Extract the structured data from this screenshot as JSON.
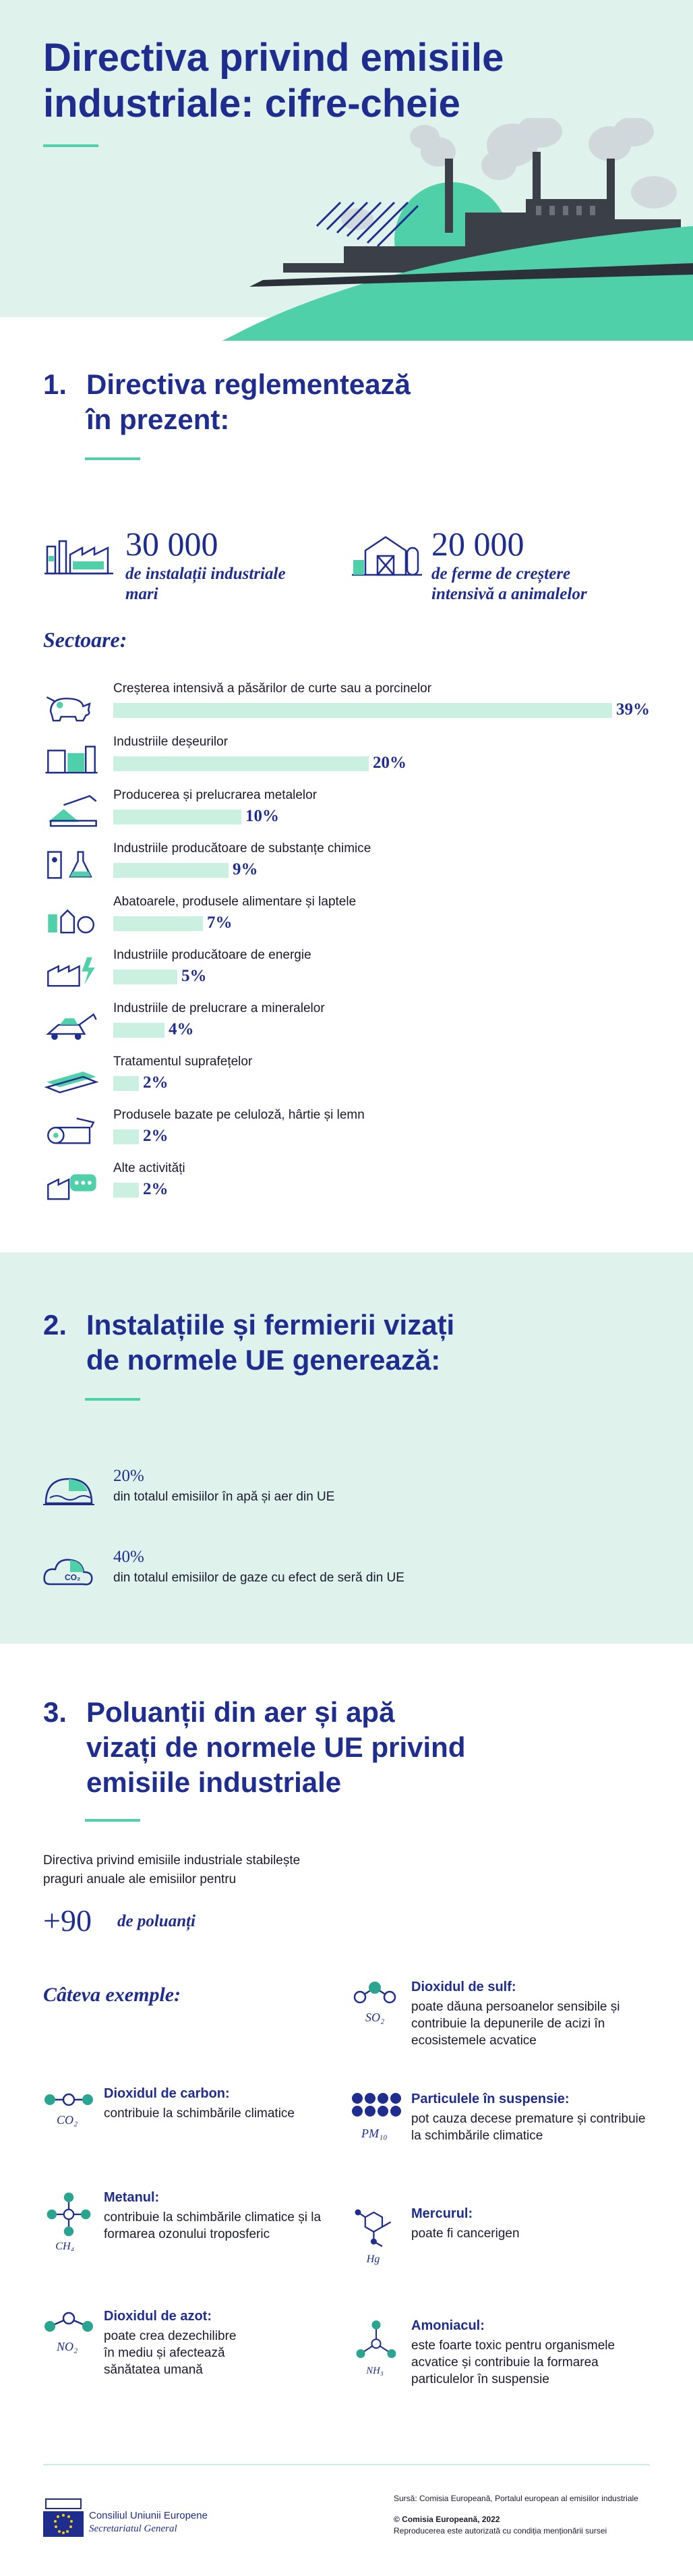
{
  "header": {
    "title_line1": "Directiva privind emisiile",
    "title_line2": "industriale: cifre-cheie"
  },
  "section1": {
    "number": "1.",
    "title_line1": "Directiva reglementează",
    "title_line2": "în prezent:",
    "stat1": {
      "value": "30 000",
      "label_line1": "de instalații industriale",
      "label_line2": "mari"
    },
    "stat2": {
      "value": "20 000",
      "label_line1": "de ferme de creștere",
      "label_line2": "intensivă a animalelor"
    },
    "sectors_label": "Sectoare:",
    "sectors": [
      {
        "label": "Creșterea intensivă a păsărilor de curte sau a porcinelor",
        "pct_text": "39%",
        "value": 39,
        "icon": "pig-icon"
      },
      {
        "label": "Industriile deșeurilor",
        "pct_text": "20%",
        "value": 20,
        "icon": "waste-icon"
      },
      {
        "label": "Producerea și prelucrarea metalelor",
        "pct_text": "10%",
        "value": 10,
        "icon": "metal-icon"
      },
      {
        "label": "Industriile producătoare de substanțe chimice",
        "pct_text": "9%",
        "value": 9,
        "icon": "chemicals-icon"
      },
      {
        "label": "Abatoarele, produsele alimentare și laptele",
        "pct_text": "7%",
        "value": 7,
        "icon": "food-icon"
      },
      {
        "label": "Industriile producătoare de energie",
        "pct_text": "5%",
        "value": 5,
        "icon": "energy-icon"
      },
      {
        "label": "Industriile de prelucrare a mineralelor",
        "pct_text": "4%",
        "value": 4,
        "icon": "minerals-icon"
      },
      {
        "label": "Tratamentul suprafețelor",
        "pct_text": "2%",
        "value": 2,
        "icon": "surface-icon"
      },
      {
        "label": "Produsele bazate pe celuloză, hârtie și lemn",
        "pct_text": "2%",
        "value": 2,
        "icon": "wood-icon"
      },
      {
        "label": "Alte activități",
        "pct_text": "2%",
        "value": 2,
        "icon": "other-icon"
      }
    ]
  },
  "section2": {
    "number": "2.",
    "title_line1": "Instalațiile și fermierii vizați",
    "title_line2": "de normele UE generează:",
    "items": [
      {
        "value": "20%",
        "desc": "din totalul emisiilor în apă și aer din UE"
      },
      {
        "value": "40%",
        "desc": "din totalul emisiilor de gaze cu efect de seră din UE",
        "badge": "CO₂"
      }
    ]
  },
  "section3": {
    "number": "3.",
    "title_line1": "Poluanții din aer și apă",
    "title_line2": "vizați de normele UE privind",
    "title_line3": "emisiile industriale",
    "intro_line1": "Directiva privind emisiile industriale stabilește",
    "intro_line2": "praguri anuale ale emisiilor pentru",
    "count": "+90",
    "count_label": "de poluanți",
    "examples_label": "Câteva exemple:",
    "pollutants": [
      {
        "formula": "SO₂",
        "name": "Dioxidul de sulf:",
        "desc": "poate dăuna persoanelor sensibile și contribuie la depunerile de acizi în ecosistemele acvatice"
      },
      {
        "formula": "CO₂",
        "name": "Dioxidul de carbon:",
        "desc": "contribuie la schimbările climatice"
      },
      {
        "formula": "PM₁₀",
        "name": "Particulele în suspensie:",
        "desc": "pot cauza decese premature și contribuie la schimbările climatice"
      },
      {
        "formula": "CH₄",
        "name": "Metanul:",
        "desc": "contribuie la schimbările climatice și la formarea ozonului troposferic"
      },
      {
        "formula": "Hg",
        "name": "Mercurul:",
        "desc": "poate fi cancerigen"
      },
      {
        "formula": "NO₂",
        "name": "Dioxidul de azot:",
        "desc": "poate crea dezechilibre în mediu și afectează sănătatea umană"
      },
      {
        "formula": "NH₃",
        "name": "Amoniacul:",
        "desc": "este foarte toxic pentru organismele acvatice și contribuie la formarea particulelor în suspensie"
      }
    ]
  },
  "footer": {
    "source": "Sursă: Comisia Europeană, Portalul european al emisiilor industriale",
    "copyright": "© Comisia Europeană, 2022",
    "reproduction": "Reproducerea este autorizată cu condiția menționării sursei",
    "org_line1": "Consiliul Uniunii Europene",
    "org_line2": "Secretariatul General"
  },
  "colors": {
    "navy": "#1f2d8f",
    "mint": "#4fd0a8",
    "pale_mint": "#dff3ec",
    "bar": "#c9f0e1",
    "teal": "#2aa58f"
  }
}
